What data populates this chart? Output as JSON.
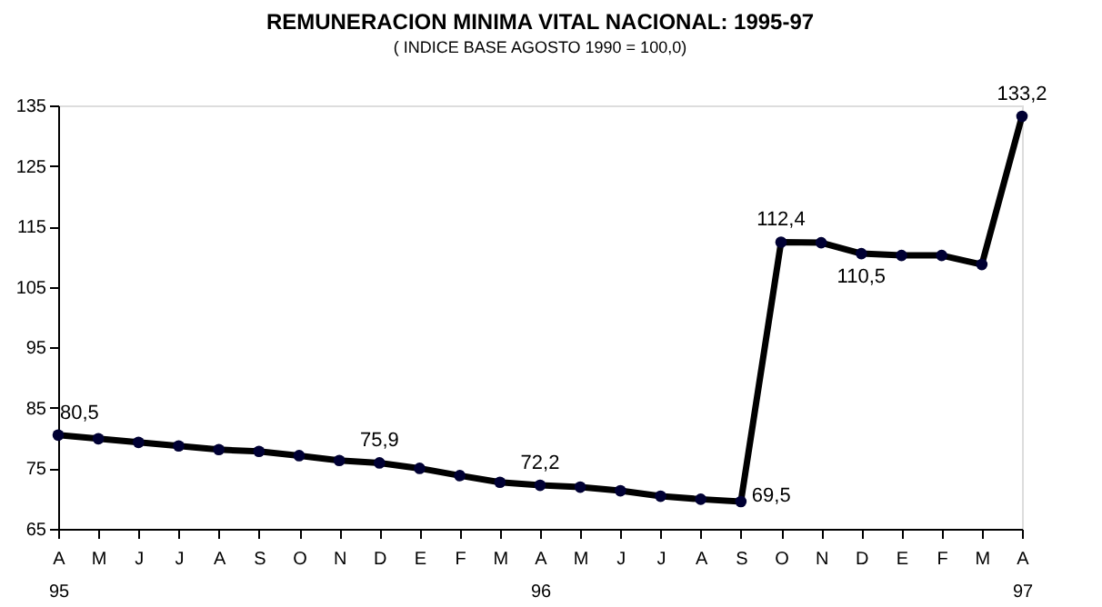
{
  "chart_data": {
    "type": "line",
    "title": "REMUNERACION MINIMA VITAL NACIONAL: 1995-97",
    "subtitle": "( INDICE BASE AGOSTO 1990 = 100,0)",
    "categories": [
      "A\n95",
      "M",
      "J",
      "J",
      "A",
      "S",
      "O",
      "N",
      "D",
      "E",
      "F",
      "M",
      "A\n96",
      "M",
      "J",
      "J",
      "A",
      "S",
      "O",
      "N",
      "D",
      "E",
      "F",
      "M",
      "A\n97"
    ],
    "series": [
      {
        "color": "#000033",
        "values": [
          80.5,
          79.9,
          79.3,
          78.7,
          78.1,
          77.8,
          77.1,
          76.3,
          75.9,
          75.0,
          73.8,
          72.7,
          72.2,
          71.9,
          71.3,
          70.4,
          69.9,
          69.5,
          112.4,
          112.3,
          110.5,
          110.2,
          110.2,
          108.7,
          133.2
        ],
        "value_labels": [
          "80,5",
          null,
          null,
          null,
          null,
          null,
          null,
          null,
          "75,9",
          null,
          null,
          null,
          "72,2",
          null,
          null,
          null,
          null,
          "69,5",
          "112,4",
          null,
          "110,5",
          null,
          null,
          null,
          "133,2"
        ]
      }
    ],
    "ylim": [
      65,
      135
    ],
    "yticks": [
      65,
      75,
      85,
      95,
      105,
      115,
      125,
      135
    ],
    "grid": false,
    "marker": "circle",
    "line_style": "solid"
  }
}
